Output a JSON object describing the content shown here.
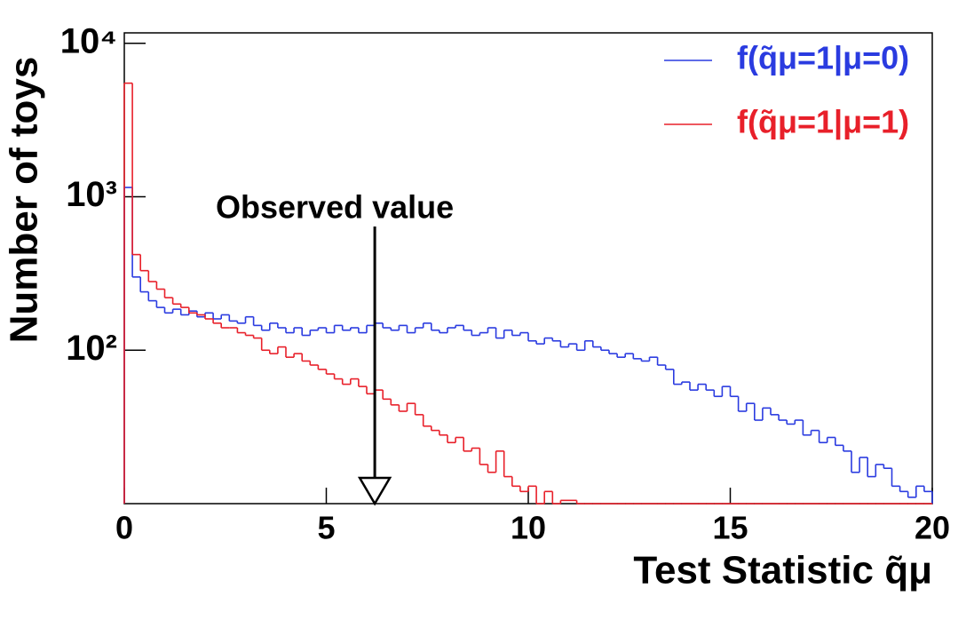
{
  "chart_data": {
    "type": "histogram",
    "title": null,
    "x_label": "Test Statistic q̃μ",
    "y_label": "Number of toys",
    "log_y": true,
    "legend": "top right",
    "xlim": [
      0,
      20
    ],
    "ylim": [
      10,
      11700
    ],
    "xticks": [
      0,
      5,
      10,
      15,
      20
    ],
    "yticks": [
      {
        "value": 100,
        "label": "10²"
      },
      {
        "value": 1000,
        "label": "10³"
      },
      {
        "value": 10000,
        "label": "10⁴"
      }
    ],
    "annotation": {
      "text": "Observed value",
      "x": 6.2
    },
    "bins": [
      0,
      0.2,
      0.4,
      0.6,
      0.8,
      1,
      1.2,
      1.4,
      1.6,
      1.8,
      2,
      2.2,
      2.4,
      2.6,
      2.8,
      3,
      3.2,
      3.4,
      3.6,
      3.8,
      4,
      4.2,
      4.4,
      4.6,
      4.8,
      5,
      5.2,
      5.4,
      5.6,
      5.8,
      6,
      6.2,
      6.4,
      6.6,
      6.8,
      7,
      7.2,
      7.4,
      7.6,
      7.8,
      8,
      8.2,
      8.4,
      8.6,
      8.8,
      9,
      9.2,
      9.4,
      9.6,
      9.8,
      10,
      10.2,
      10.4,
      10.6,
      10.8,
      11,
      11.2,
      11.4,
      11.6,
      11.8,
      12,
      12.2,
      12.4,
      12.6,
      12.8,
      13,
      13.2,
      13.4,
      13.6,
      13.8,
      14,
      14.2,
      14.4,
      14.6,
      14.8,
      15,
      15.2,
      15.4,
      15.6,
      15.8,
      16,
      16.2,
      16.4,
      16.6,
      16.8,
      17,
      17.2,
      17.4,
      17.6,
      17.8,
      18,
      18.2,
      18.4,
      18.6,
      18.8,
      19,
      19.2,
      19.4,
      19.6,
      19.8,
      20
    ],
    "series": [
      {
        "name": "f(q̃μ=1|μ=0)",
        "color": "#2a3be0",
        "values": [
          1150,
          300,
          240,
          210,
          190,
          175,
          185,
          170,
          180,
          165,
          175,
          160,
          170,
          155,
          150,
          165,
          145,
          135,
          150,
          140,
          130,
          140,
          125,
          135,
          140,
          130,
          145,
          135,
          140,
          130,
          145,
          150,
          140,
          135,
          145,
          130,
          140,
          150,
          135,
          130,
          140,
          145,
          135,
          125,
          130,
          140,
          120,
          135,
          125,
          130,
          115,
          110,
          120,
          115,
          105,
          110,
          100,
          115,
          105,
          100,
          95,
          90,
          95,
          88,
          85,
          90,
          80,
          75,
          60,
          62,
          55,
          60,
          55,
          50,
          58,
          50,
          40,
          45,
          35,
          42,
          38,
          35,
          33,
          35,
          28,
          30,
          25,
          27,
          24,
          22,
          16,
          20,
          15,
          18,
          17,
          13,
          12,
          11,
          13,
          12
        ]
      },
      {
        "name": "f(q̃μ=1|μ=1)",
        "color": "#e8202a",
        "values": [
          5500,
          420,
          330,
          280,
          250,
          220,
          200,
          190,
          175,
          170,
          160,
          150,
          140,
          140,
          130,
          125,
          120,
          100,
          95,
          105,
          90,
          95,
          85,
          80,
          75,
          70,
          65,
          60,
          65,
          58,
          52,
          55,
          48,
          44,
          40,
          45,
          38,
          32,
          30,
          28,
          25,
          27,
          22,
          23,
          18,
          16,
          22,
          15,
          13,
          12,
          13,
          9,
          12,
          9,
          10.5,
          10.5,
          9,
          8,
          0,
          0,
          0,
          0,
          0,
          0,
          0,
          0,
          0,
          0,
          0,
          0,
          0,
          0,
          0,
          0,
          0,
          0,
          0,
          0,
          0,
          0,
          0,
          0,
          0,
          0,
          0,
          0,
          0,
          0,
          0,
          0,
          0,
          0,
          0,
          0,
          0,
          0,
          0,
          0,
          0,
          0
        ]
      }
    ]
  }
}
